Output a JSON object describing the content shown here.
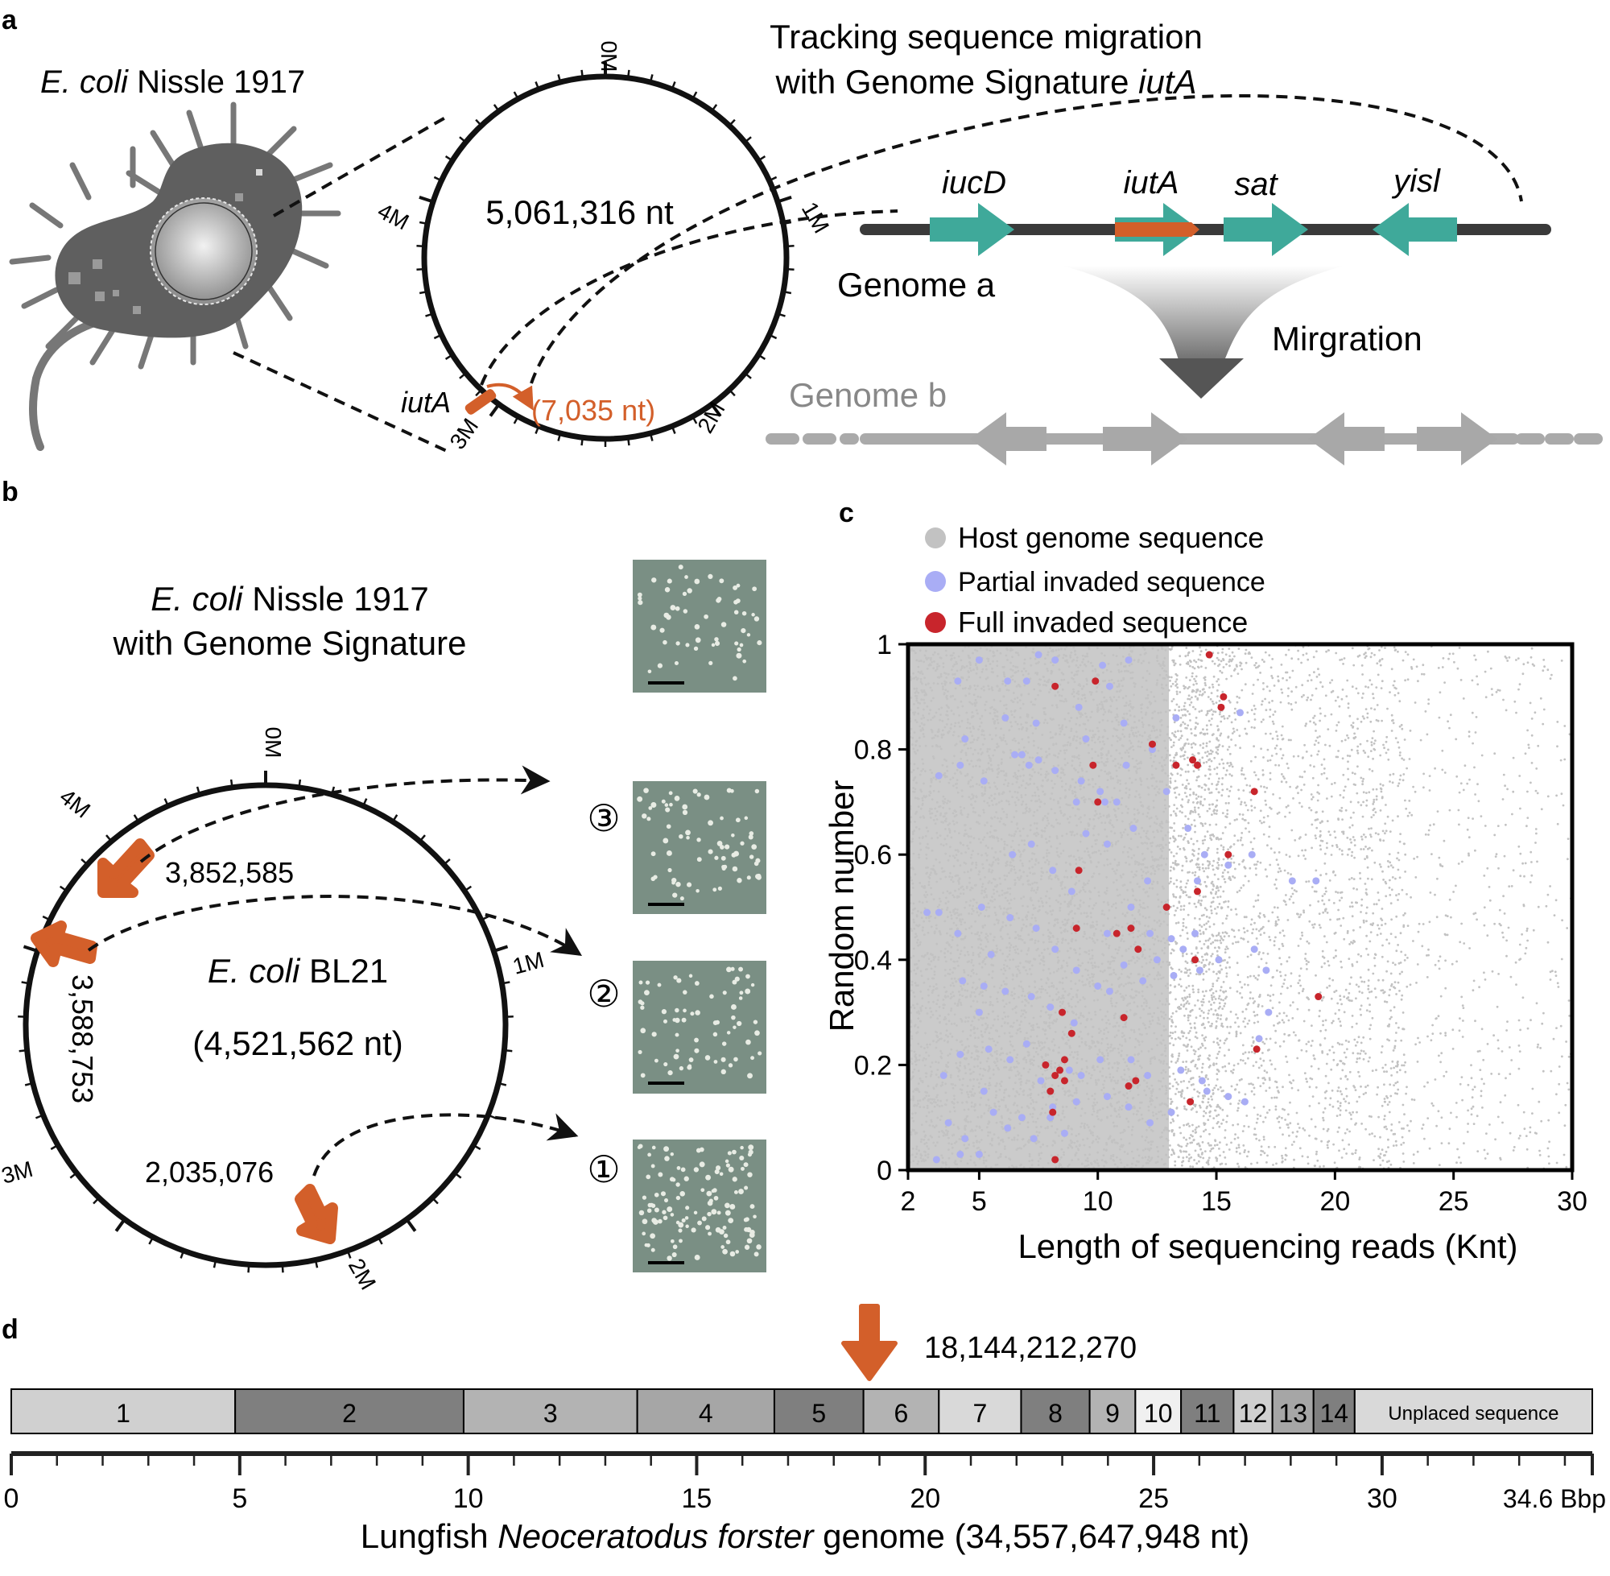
{
  "panel_a": {
    "label": "a",
    "organism": "Nissle 1917",
    "organism_italic": "E. coli",
    "genome_size": "5,061,316 nt",
    "tick_labels": [
      "0M",
      "1M",
      "2M",
      "3M",
      "4M"
    ],
    "insert_label": "iutA",
    "insert_size": "(7,035 nt)",
    "title_line1": "Tracking sequence migration",
    "title_line2": "with Genome Signature",
    "title_gene": "iutA",
    "genes": [
      "iucD",
      "iutA",
      "sat",
      "yisl"
    ],
    "genome_a": "Genome a",
    "migration": "Mirgration",
    "genome_b": "Genome b"
  },
  "panel_b": {
    "label": "b",
    "heading_italic": "E. coli",
    "heading_line1": "Nissle 1917",
    "heading_line2": "with Genome Signature",
    "genome_italic": "E. coli",
    "genome_name": "BL21",
    "genome_size": "(4,521,562 nt)",
    "tick_labels": [
      "0M",
      "1M",
      "2M",
      "3M",
      "4M"
    ],
    "sites": [
      {
        "id": "3",
        "marker": "③",
        "position": "3,852,585"
      },
      {
        "id": "2",
        "marker": "②",
        "position": "3,588,753"
      },
      {
        "id": "1",
        "marker": "①",
        "position": "2,035,076"
      }
    ]
  },
  "panel_c": {
    "label": "c"
  },
  "panel_d": {
    "label": "d",
    "insertion_site": "18,144,212,270",
    "chromosomes": [
      {
        "label": "1",
        "start": 0,
        "end": 4.9,
        "color": "#d0d0d0"
      },
      {
        "label": "2",
        "start": 4.9,
        "end": 9.9,
        "color": "#7f7f7f"
      },
      {
        "label": "3",
        "start": 9.9,
        "end": 13.7,
        "color": "#b3b3b3"
      },
      {
        "label": "4",
        "start": 13.7,
        "end": 16.7,
        "color": "#a6a6a6"
      },
      {
        "label": "5",
        "start": 16.7,
        "end": 18.65,
        "color": "#7f7f7f"
      },
      {
        "label": "6",
        "start": 18.65,
        "end": 20.3,
        "color": "#b3b3b3"
      },
      {
        "label": "7",
        "start": 20.3,
        "end": 22.1,
        "color": "#d9d9d9"
      },
      {
        "label": "8",
        "start": 22.1,
        "end": 23.6,
        "color": "#7f7f7f"
      },
      {
        "label": "9",
        "start": 23.6,
        "end": 24.6,
        "color": "#b3b3b3"
      },
      {
        "label": "10",
        "start": 24.6,
        "end": 25.6,
        "color": "#f0f0f0"
      },
      {
        "label": "11",
        "start": 25.6,
        "end": 26.75,
        "color": "#7f7f7f"
      },
      {
        "label": "12",
        "start": 26.75,
        "end": 27.6,
        "color": "#d0d0d0"
      },
      {
        "label": "13",
        "start": 27.6,
        "end": 28.5,
        "color": "#a6a6a6"
      },
      {
        "label": "14",
        "start": 28.5,
        "end": 29.4,
        "color": "#7f7f7f"
      },
      {
        "label": "Unplaced sequence",
        "start": 29.4,
        "end": 34.6,
        "color": "#d9d9d9"
      }
    ],
    "axis_ticks": [
      "0",
      "5",
      "10",
      "15",
      "20",
      "25",
      "30"
    ],
    "axis_end": "34.6 Bbp",
    "caption_prefix": "Lungfish",
    "caption_species": "Neoceratodus forster",
    "caption_suffix": "genome (34,557,647,948 nt)"
  },
  "chart_data": {
    "type": "scatter",
    "xlabel": "Length of sequencing reads (Knt)",
    "ylabel": "Random number",
    "xlim": [
      2,
      30
    ],
    "ylim": [
      0,
      1
    ],
    "xticks": [
      2,
      5,
      10,
      15,
      20,
      25,
      30
    ],
    "yticks": [
      0,
      0.2,
      0.4,
      0.6,
      0.8,
      1
    ],
    "legend": [
      "Host genome sequence",
      "Partial invaded sequence",
      "Full invaded sequence"
    ],
    "colors": {
      "host": "#c2c2c2",
      "partial": "#a9adf5",
      "full": "#c8252c"
    },
    "series": [
      {
        "name": "Host genome sequence",
        "description": "dense background cloud; density high between 2 and 15 Knt and decreasing toward 30 Knt",
        "points": []
      },
      {
        "name": "Partial invaded sequence",
        "points": [
          [
            5.0,
            0.97
          ],
          [
            7.5,
            0.98
          ],
          [
            8.2,
            0.97
          ],
          [
            10.2,
            0.96
          ],
          [
            11.3,
            0.97
          ],
          [
            4.1,
            0.93
          ],
          [
            6.2,
            0.93
          ],
          [
            7.0,
            0.93
          ],
          [
            9.2,
            0.88
          ],
          [
            10.5,
            0.92
          ],
          [
            13.3,
            0.86
          ],
          [
            16.0,
            0.87
          ],
          [
            4.4,
            0.82
          ],
          [
            6.1,
            0.86
          ],
          [
            7.4,
            0.85
          ],
          [
            9.5,
            0.82
          ],
          [
            11.1,
            0.85
          ],
          [
            12.3,
            0.8
          ],
          [
            6.8,
            0.79
          ],
          [
            7.1,
            0.77
          ],
          [
            8.2,
            0.76
          ],
          [
            9.3,
            0.74
          ],
          [
            10.1,
            0.72
          ],
          [
            10.3,
            0.7
          ],
          [
            11.2,
            0.77
          ],
          [
            11.5,
            0.65
          ],
          [
            13.8,
            0.65
          ],
          [
            3.3,
            0.75
          ],
          [
            4.2,
            0.77
          ],
          [
            5.2,
            0.74
          ],
          [
            6.5,
            0.79
          ],
          [
            7.5,
            0.78
          ],
          [
            9.1,
            0.7
          ],
          [
            10.4,
            0.62
          ],
          [
            12.1,
            0.55
          ],
          [
            14.2,
            0.55
          ],
          [
            15.5,
            0.58
          ],
          [
            16.5,
            0.6
          ],
          [
            18.2,
            0.55
          ],
          [
            19.2,
            0.55
          ],
          [
            6.4,
            0.6
          ],
          [
            7.2,
            0.62
          ],
          [
            8.1,
            0.57
          ],
          [
            8.9,
            0.53
          ],
          [
            9.5,
            0.64
          ],
          [
            10.4,
            0.45
          ],
          [
            11.4,
            0.5
          ],
          [
            12.2,
            0.45
          ],
          [
            13.1,
            0.44
          ],
          [
            14.1,
            0.45
          ],
          [
            15.1,
            0.4
          ],
          [
            16.6,
            0.42
          ],
          [
            17.1,
            0.38
          ],
          [
            2.8,
            0.49
          ],
          [
            3.3,
            0.49
          ],
          [
            4.1,
            0.45
          ],
          [
            5.1,
            0.5
          ],
          [
            5.5,
            0.41
          ],
          [
            6.3,
            0.48
          ],
          [
            7.4,
            0.46
          ],
          [
            8.2,
            0.42
          ],
          [
            9.1,
            0.38
          ],
          [
            10.0,
            0.35
          ],
          [
            11.1,
            0.39
          ],
          [
            12.5,
            0.4
          ],
          [
            13.6,
            0.42
          ],
          [
            14.3,
            0.38
          ],
          [
            4.3,
            0.36
          ],
          [
            5.2,
            0.35
          ],
          [
            6.1,
            0.34
          ],
          [
            7.2,
            0.33
          ],
          [
            8.0,
            0.31
          ],
          [
            9.0,
            0.28
          ],
          [
            10.5,
            0.34
          ],
          [
            11.9,
            0.36
          ],
          [
            13.2,
            0.37
          ],
          [
            3.5,
            0.18
          ],
          [
            4.2,
            0.22
          ],
          [
            5.0,
            0.3
          ],
          [
            5.4,
            0.23
          ],
          [
            6.3,
            0.21
          ],
          [
            7.0,
            0.24
          ],
          [
            7.6,
            0.17
          ],
          [
            8.1,
            0.12
          ],
          [
            8.8,
            0.19
          ],
          [
            9.3,
            0.18
          ],
          [
            10.1,
            0.21
          ],
          [
            10.4,
            0.14
          ],
          [
            11.4,
            0.21
          ],
          [
            12.1,
            0.18
          ],
          [
            13.5,
            0.19
          ],
          [
            14.4,
            0.17
          ],
          [
            3.7,
            0.09
          ],
          [
            4.4,
            0.06
          ],
          [
            5.0,
            0.03
          ],
          [
            5.6,
            0.11
          ],
          [
            6.2,
            0.08
          ],
          [
            6.8,
            0.1
          ],
          [
            7.3,
            0.06
          ],
          [
            8.0,
            0.1
          ],
          [
            8.6,
            0.07
          ],
          [
            9.1,
            0.13
          ],
          [
            11.3,
            0.12
          ],
          [
            12.2,
            0.09
          ],
          [
            13.1,
            0.11
          ],
          [
            14.6,
            0.15
          ],
          [
            15.5,
            0.14
          ],
          [
            16.2,
            0.13
          ],
          [
            3.2,
            0.02
          ],
          [
            4.2,
            0.03
          ],
          [
            5.2,
            0.15
          ],
          [
            17.2,
            0.3
          ],
          [
            16.8,
            0.25
          ],
          [
            14.5,
            0.6
          ],
          [
            12.9,
            0.72
          ],
          [
            10.8,
            0.7
          ]
        ]
      },
      {
        "name": "Full invaded sequence",
        "points": [
          [
            14.7,
            0.98
          ],
          [
            15.3,
            0.9
          ],
          [
            15.2,
            0.88
          ],
          [
            8.2,
            0.92
          ],
          [
            9.9,
            0.93
          ],
          [
            12.3,
            0.81
          ],
          [
            13.3,
            0.77
          ],
          [
            14.0,
            0.78
          ],
          [
            14.2,
            0.77
          ],
          [
            16.6,
            0.72
          ],
          [
            9.8,
            0.77
          ],
          [
            10.0,
            0.7
          ],
          [
            15.5,
            0.6
          ],
          [
            9.2,
            0.57
          ],
          [
            12.9,
            0.5
          ],
          [
            14.2,
            0.53
          ],
          [
            9.1,
            0.46
          ],
          [
            10.8,
            0.45
          ],
          [
            11.4,
            0.46
          ],
          [
            11.7,
            0.42
          ],
          [
            14.1,
            0.4
          ],
          [
            19.3,
            0.33
          ],
          [
            8.5,
            0.3
          ],
          [
            8.9,
            0.26
          ],
          [
            11.1,
            0.29
          ],
          [
            16.7,
            0.23
          ],
          [
            8.6,
            0.21
          ],
          [
            8.4,
            0.19
          ],
          [
            8.2,
            0.18
          ],
          [
            8.1,
            0.11
          ],
          [
            8.0,
            0.15
          ],
          [
            11.3,
            0.16
          ],
          [
            11.6,
            0.17
          ],
          [
            13.9,
            0.13
          ],
          [
            7.8,
            0.2
          ],
          [
            8.6,
            0.17
          ],
          [
            8.2,
            0.02
          ]
        ]
      }
    ]
  }
}
